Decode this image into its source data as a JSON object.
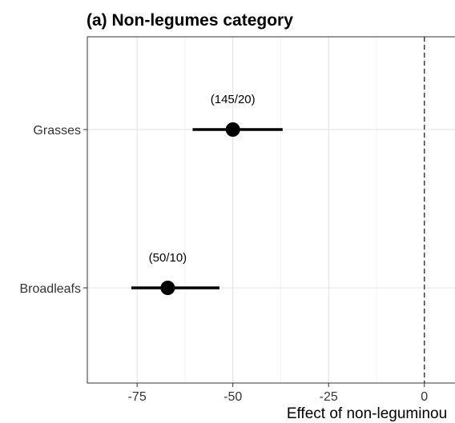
{
  "chart_data": {
    "type": "forest",
    "title": "(a) Non-legumes category",
    "xlabel": "Effect of non-leguminou",
    "ylabel": "",
    "xlim": [
      -88,
      8
    ],
    "x_ticks": [
      -75,
      -50,
      -25,
      0
    ],
    "x_tick_labels": [
      "-75",
      "-50",
      "-25",
      "0"
    ],
    "reference_line": 0,
    "grid": true,
    "categories": [
      "Grasses",
      "Broadleafs"
    ],
    "points": [
      {
        "category": "Grasses",
        "estimate": -50,
        "ci_low": -60.5,
        "ci_high": -37,
        "annotation": "(145/20)"
      },
      {
        "category": "Broadleafs",
        "estimate": -67,
        "ci_low": -76.5,
        "ci_high": -53.5,
        "annotation": "(50/10)"
      }
    ]
  }
}
